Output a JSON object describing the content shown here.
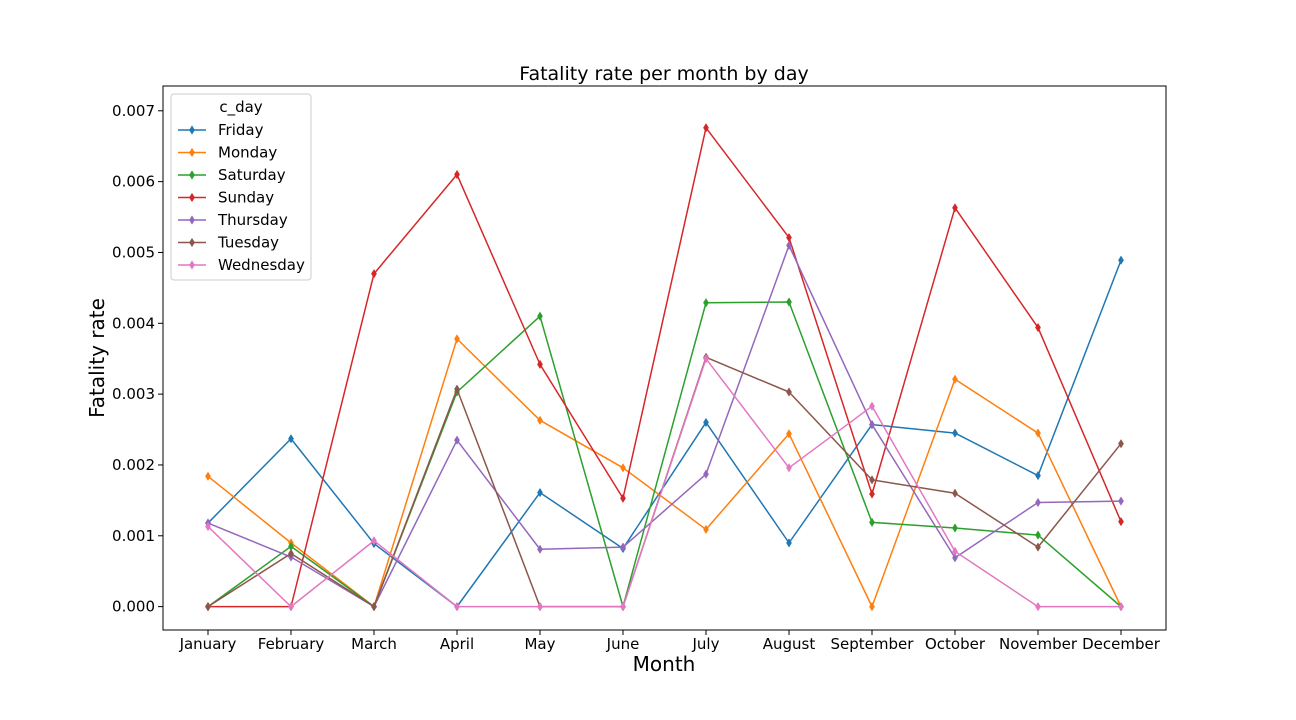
{
  "chart_data": {
    "type": "line",
    "title": "Fatality rate per month by day",
    "xlabel": "Month",
    "ylabel": "Fatality rate",
    "categories": [
      "January",
      "February",
      "March",
      "April",
      "May",
      "June",
      "July",
      "August",
      "September",
      "October",
      "November",
      "December"
    ],
    "ylim": [
      -0.00033,
      0.00735
    ],
    "yticks": [
      0.0,
      0.001,
      0.002,
      0.003,
      0.004,
      0.005,
      0.006,
      0.007
    ],
    "ytick_labels": [
      "0.000",
      "0.001",
      "0.002",
      "0.003",
      "0.004",
      "0.005",
      "0.006",
      "0.007"
    ],
    "grid": false,
    "marker": "diamond",
    "legend": {
      "title": "c_day",
      "placement": "upper-left"
    },
    "series": [
      {
        "name": "Friday",
        "color": "#1f77b4",
        "values": [
          0.00118,
          0.00237,
          0.00089,
          0.0,
          0.00161,
          0.00082,
          0.0026,
          0.0009,
          0.00257,
          0.00245,
          0.00185,
          0.00489
        ]
      },
      {
        "name": "Monday",
        "color": "#ff7f0e",
        "values": [
          0.00184,
          0.0009,
          0.0,
          0.00378,
          0.00263,
          0.00196,
          0.00109,
          0.00244,
          0.0,
          0.00321,
          0.00245,
          0.0
        ]
      },
      {
        "name": "Saturday",
        "color": "#2ca02c",
        "values": [
          0.0,
          0.00085,
          0.0,
          0.00303,
          0.0041,
          0.0,
          0.00429,
          0.0043,
          0.00119,
          0.00111,
          0.00101,
          0.0
        ]
      },
      {
        "name": "Sunday",
        "color": "#d62728",
        "values": [
          0.0,
          0.0,
          0.0047,
          0.0061,
          0.00342,
          0.00153,
          0.00676,
          0.00521,
          0.00159,
          0.00563,
          0.00394,
          0.0012
        ]
      },
      {
        "name": "Thursday",
        "color": "#9467bd",
        "values": [
          0.00118,
          0.0007,
          0.0,
          0.00235,
          0.00081,
          0.00084,
          0.00187,
          0.0051,
          0.00257,
          0.00069,
          0.00147,
          0.00149
        ]
      },
      {
        "name": "Tuesday",
        "color": "#8c564b",
        "values": [
          0.0,
          0.00075,
          0.0,
          0.00307,
          0.0,
          0.0,
          0.00352,
          0.00303,
          0.00179,
          0.0016,
          0.00084,
          0.0023
        ]
      },
      {
        "name": "Wednesday",
        "color": "#e377c2",
        "values": [
          0.00113,
          0.0,
          0.00093,
          0.0,
          0.0,
          0.0,
          0.0035,
          0.00196,
          0.00283,
          0.00078,
          0.0,
          0.0
        ]
      }
    ]
  }
}
